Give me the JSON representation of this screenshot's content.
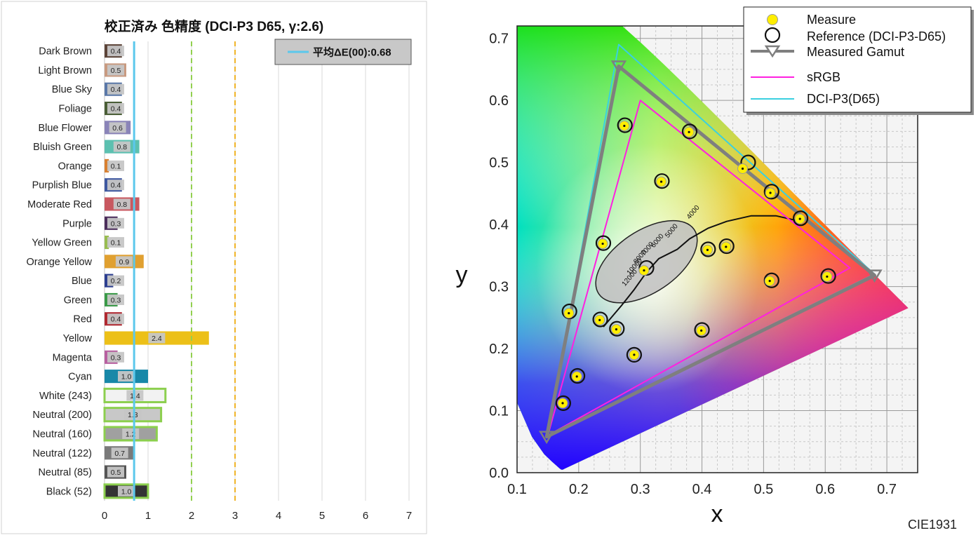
{
  "chart_data": [
    {
      "type": "bar",
      "title": "校正済み 色精度 (DCI-P3 D65, γ:2.6)",
      "xlim": [
        0,
        7
      ],
      "xticks": [
        "0",
        "1",
        "2",
        "3",
        "4",
        "5",
        "6",
        "7"
      ],
      "grid": true,
      "reference_lines": [
        {
          "value": 0.68,
          "color": "#5bc8ec",
          "style": "solid"
        },
        {
          "value": 2,
          "color": "#92d050",
          "style": "dashed"
        },
        {
          "value": 3,
          "color": "#f0b429",
          "style": "dashed"
        }
      ],
      "legend": {
        "label": "平均ΔE(00):0.68",
        "placement": "top-right"
      },
      "categories": [
        "Dark Brown",
        "Light Brown",
        "Blue Sky",
        "Foliage",
        "Blue Flower",
        "Bluish Green",
        "Orange",
        "Purplish Blue",
        "Moderate Red",
        "Purple",
        "Yellow Green",
        "Orange Yellow",
        "Blue",
        "Green",
        "Red",
        "Yellow",
        "Magenta",
        "Cyan",
        "White (243)",
        "Neutral (200)",
        "Neutral (160)",
        "Neutral (122)",
        "Neutral (85)",
        "Black (52)"
      ],
      "values": [
        0.4,
        0.5,
        0.4,
        0.4,
        0.6,
        0.8,
        0.1,
        0.4,
        0.8,
        0.3,
        0.1,
        0.9,
        0.2,
        0.3,
        0.4,
        2.4,
        0.3,
        1.0,
        1.4,
        1.3,
        1.2,
        0.7,
        0.5,
        1.0
      ],
      "value_labels": [
        "0.4",
        "0.5",
        "0.4",
        "0.4",
        "0.6",
        "0.8",
        "0.1",
        "0.4",
        "0.8",
        "0.3",
        "0.1",
        "0.9",
        "0.2",
        "0.3",
        "0.4",
        "2.4",
        "0.3",
        "1.0",
        "1.4",
        "1.3",
        "1.2",
        "0.7",
        "0.5",
        "1.0"
      ],
      "bar_colors": [
        "#5c4438",
        "#c89a80",
        "#5a78a8",
        "#4a5e36",
        "#8a84b8",
        "#5cc0b0",
        "#d88030",
        "#3e58a0",
        "#c85860",
        "#4c2e5c",
        "#98bc50",
        "#e0a030",
        "#2c3e90",
        "#3a9a48",
        "#b02830",
        "#ecc018",
        "#b860a0",
        "#1888a8",
        "#f2f2f2",
        "#c8c8c8",
        "#a0a0a0",
        "#7a7a7a",
        "#555555",
        "#343434"
      ],
      "outlined": [
        false,
        false,
        false,
        false,
        false,
        false,
        false,
        false,
        false,
        false,
        false,
        false,
        false,
        false,
        false,
        false,
        false,
        false,
        true,
        true,
        true,
        false,
        false,
        true
      ]
    },
    {
      "type": "scatter",
      "label": "CIE1931",
      "xlabel": "x",
      "ylabel": "y",
      "xlim": [
        0.1,
        0.75
      ],
      "ylim": [
        0.0,
        0.72
      ],
      "xticks": [
        "0.1",
        "0.2",
        "0.3",
        "0.4",
        "0.5",
        "0.6",
        "0.7"
      ],
      "yticks": [
        "0.0",
        "0.1",
        "0.2",
        "0.3",
        "0.4",
        "0.5",
        "0.6",
        "0.7"
      ],
      "grid": true,
      "legend": {
        "placement": "top-right",
        "entries": [
          "Measure",
          "Reference (DCI-P3-D65)",
          "Measured Gamut",
          "sRGB",
          "DCI-P3(D65)"
        ]
      },
      "measured_gamut": [
        [
          0.265,
          0.655
        ],
        [
          0.68,
          0.318
        ],
        [
          0.148,
          0.058
        ]
      ],
      "srgb": [
        [
          0.64,
          0.33
        ],
        [
          0.3,
          0.6
        ],
        [
          0.15,
          0.06
        ]
      ],
      "dci_p3": [
        [
          0.68,
          0.32
        ],
        [
          0.265,
          0.69
        ],
        [
          0.15,
          0.06
        ]
      ],
      "reference_points": [
        [
          0.275,
          0.56
        ],
        [
          0.38,
          0.55
        ],
        [
          0.475,
          0.5
        ],
        [
          0.335,
          0.47
        ],
        [
          0.513,
          0.453
        ],
        [
          0.56,
          0.41
        ],
        [
          0.24,
          0.37
        ],
        [
          0.41,
          0.36
        ],
        [
          0.44,
          0.365
        ],
        [
          0.31,
          0.33
        ],
        [
          0.513,
          0.31
        ],
        [
          0.605,
          0.317
        ],
        [
          0.185,
          0.26
        ],
        [
          0.235,
          0.247
        ],
        [
          0.262,
          0.232
        ],
        [
          0.4,
          0.23
        ],
        [
          0.29,
          0.19
        ],
        [
          0.198,
          0.156
        ],
        [
          0.175,
          0.112
        ]
      ],
      "measured_points": [
        [
          0.274,
          0.559
        ],
        [
          0.379,
          0.549
        ],
        [
          0.466,
          0.49
        ],
        [
          0.334,
          0.469
        ],
        [
          0.511,
          0.451
        ],
        [
          0.559,
          0.409
        ],
        [
          0.239,
          0.369
        ],
        [
          0.409,
          0.359
        ],
        [
          0.439,
          0.364
        ],
        [
          0.306,
          0.326
        ],
        [
          0.51,
          0.309
        ],
        [
          0.603,
          0.316
        ],
        [
          0.184,
          0.257
        ],
        [
          0.234,
          0.246
        ],
        [
          0.261,
          0.231
        ],
        [
          0.399,
          0.229
        ],
        [
          0.29,
          0.19
        ],
        [
          0.197,
          0.155
        ],
        [
          0.174,
          0.112
        ]
      ],
      "planckian_labels": [
        "4000",
        "5000",
        "6000",
        "7000",
        "8000",
        "10000",
        "12000"
      ]
    }
  ]
}
